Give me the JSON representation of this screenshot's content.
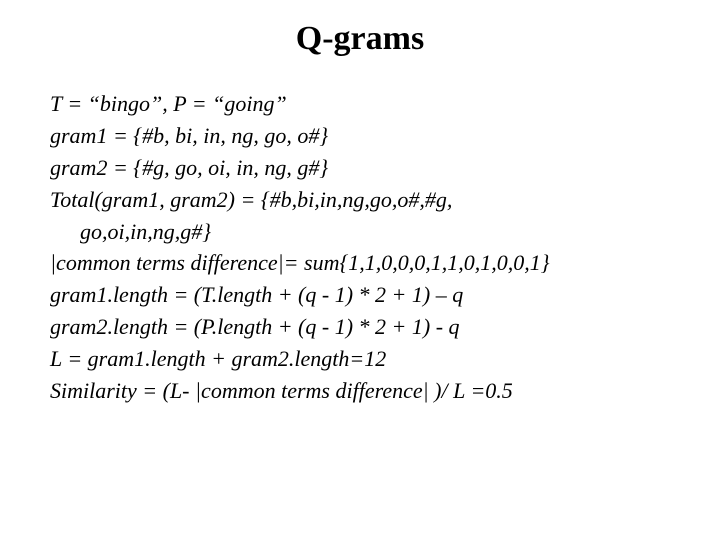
{
  "title": "Q-grams",
  "lines": {
    "line1": "T = “bingo”, P = “going”",
    "line2": "gram1 = {#b, bi, in, ng, go, o#}",
    "line3": "gram2 = {#g, go, oi, in, ng, g#}",
    "line4": "Total(gram1, gram2) = {#b,bi,in,ng,go,o#,#g,",
    "line5": "go,oi,in,ng,g#}",
    "line6": "|common terms difference|= sum{1,1,0,0,0,1,1,0,1,0,0,1}",
    "line7": "gram1.length = (T.length + (q - 1) * 2 + 1) – q",
    "line8": "gram2.length = (P.length + (q - 1) * 2 + 1) - q",
    "line9": "L = gram1.length + gram2.length=12",
    "line10": "Similarity = (L- |common terms difference| )/ L =0.5"
  },
  "styling": {
    "title_fontsize": 34,
    "title_fontweight": "bold",
    "body_fontsize": 22,
    "body_fontstyle": "italic",
    "text_color": "#000000",
    "background_color": "#ffffff",
    "font_family": "Times New Roman"
  }
}
